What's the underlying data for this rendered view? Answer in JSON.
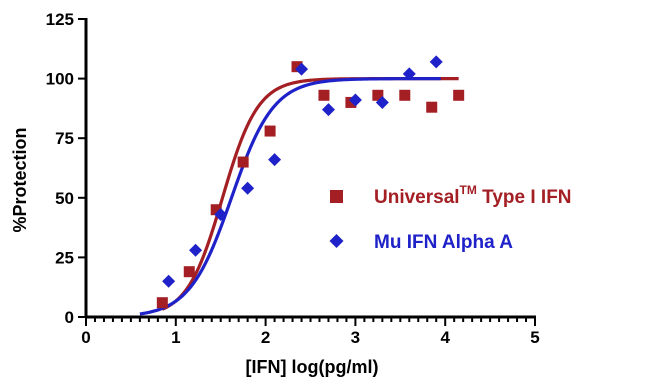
{
  "chart_data": {
    "type": "scatter",
    "title": "",
    "xlabel": "[IFN] log(pg/ml)",
    "ylabel": "%Protection",
    "xlim": [
      0,
      5
    ],
    "ylim": [
      0,
      125
    ],
    "x_ticks": [
      0,
      1,
      2,
      3,
      4,
      5
    ],
    "x_tick_labels": [
      "0",
      "1",
      "2",
      "3",
      "4",
      "5"
    ],
    "y_ticks": [
      0,
      25,
      50,
      75,
      100,
      125
    ],
    "y_tick_labels": [
      "0",
      "25",
      "50",
      "75",
      "100",
      "125"
    ],
    "x_minor_step": 0.1,
    "grid": false,
    "legend_position": "center-right",
    "series": [
      {
        "name_main": "Universal",
        "name_superscript": "TM",
        "name_rest": " Type I IFN",
        "marker": "square",
        "color": "#a31f24",
        "points": [
          {
            "x": 0.85,
            "y": 6
          },
          {
            "x": 1.15,
            "y": 19
          },
          {
            "x": 1.45,
            "y": 45
          },
          {
            "x": 1.75,
            "y": 65
          },
          {
            "x": 2.05,
            "y": 78
          },
          {
            "x": 2.35,
            "y": 105
          },
          {
            "x": 2.65,
            "y": 93
          },
          {
            "x": 2.95,
            "y": 90
          },
          {
            "x": 3.25,
            "y": 93
          },
          {
            "x": 3.55,
            "y": 93
          },
          {
            "x": 3.85,
            "y": 88
          },
          {
            "x": 4.15,
            "y": 93
          }
        ],
        "fit": {
          "bottom": 0,
          "top": 100,
          "logEC50": 1.52,
          "hill": 2.2,
          "x_range": [
            0.85,
            4.15
          ]
        }
      },
      {
        "name": "Mu IFN Alpha A",
        "marker": "diamond",
        "color": "#1f22c8",
        "points": [
          {
            "x": 0.92,
            "y": 15
          },
          {
            "x": 1.22,
            "y": 28
          },
          {
            "x": 1.5,
            "y": 43
          },
          {
            "x": 1.8,
            "y": 54
          },
          {
            "x": 2.1,
            "y": 66
          },
          {
            "x": 2.4,
            "y": 104
          },
          {
            "x": 2.7,
            "y": 87
          },
          {
            "x": 3.0,
            "y": 91
          },
          {
            "x": 3.3,
            "y": 90
          },
          {
            "x": 3.6,
            "y": 102
          },
          {
            "x": 3.9,
            "y": 107
          }
        ],
        "fit": {
          "bottom": 0,
          "top": 100,
          "logEC50": 1.62,
          "hill": 1.85,
          "x_range": [
            0.6,
            3.95
          ]
        }
      }
    ]
  }
}
